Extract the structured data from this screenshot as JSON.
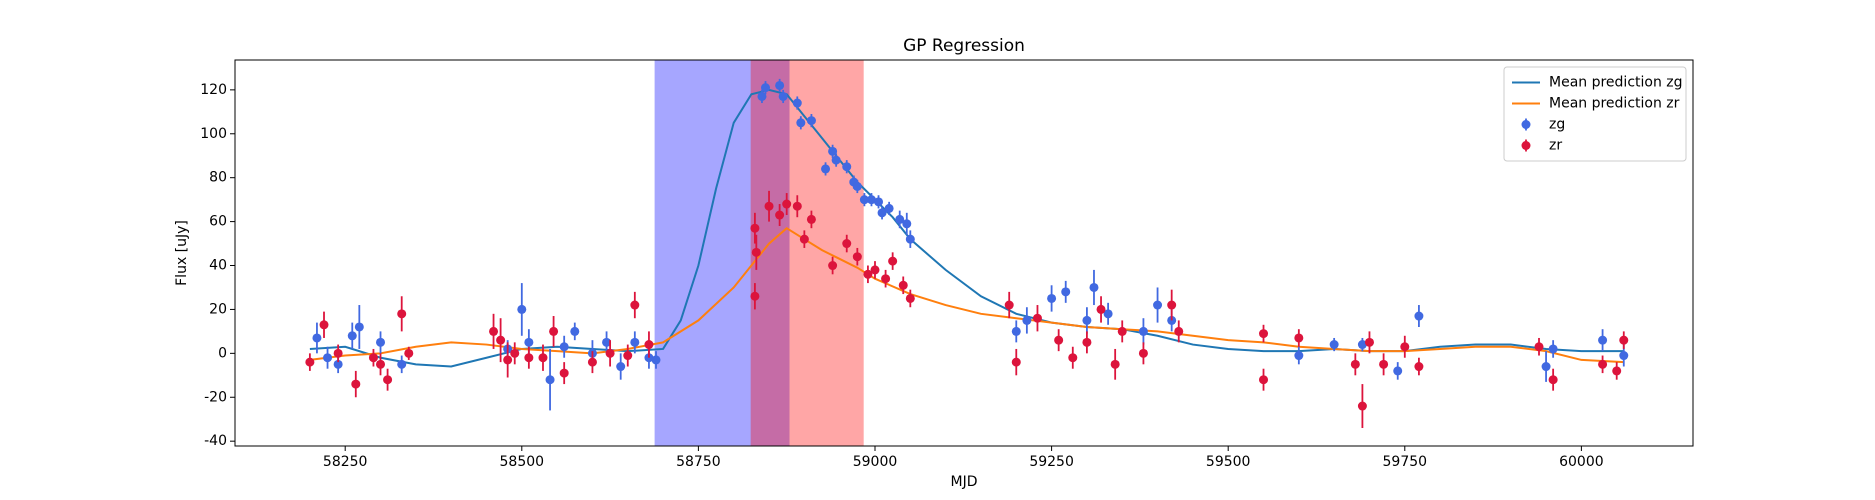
{
  "chart_data": {
    "type": "errorbar",
    "title": "GP Regression",
    "x_label": "MJD",
    "y_label": "Flux [uJy]",
    "xlim": [
      58094,
      60158
    ],
    "ylim": [
      -42.2,
      133.6
    ],
    "xticks": [
      58250,
      58500,
      58750,
      59000,
      59250,
      59500,
      59750,
      60000
    ],
    "yticks": [
      -40,
      -20,
      0,
      20,
      40,
      60,
      80,
      100,
      120
    ],
    "grid": false,
    "legend": "upper right",
    "spans": [
      {
        "xmin": 58688,
        "xmax": 58879,
        "color": "#0000ff"
      },
      {
        "xmin": 58824,
        "xmax": 58984,
        "color": "#ff0000"
      }
    ],
    "lines": [
      {
        "name": "Mean prediction zg",
        "color": "#1f77b4",
        "x": [
          58200,
          58250,
          58300,
          58350,
          58400,
          58450,
          58500,
          58550,
          58600,
          58650,
          58700,
          58725,
          58750,
          58775,
          58800,
          58825,
          58850,
          58875,
          58900,
          58925,
          58950,
          58975,
          59000,
          59025,
          59050,
          59100,
          59150,
          59200,
          59250,
          59300,
          59350,
          59400,
          59450,
          59500,
          59550,
          59600,
          59650,
          59700,
          59750,
          59800,
          59850,
          59900,
          59950,
          60000,
          60060
        ],
        "values": [
          2,
          3,
          -2,
          -5,
          -6,
          -2,
          2,
          3,
          2,
          1,
          2,
          15,
          40,
          75,
          105,
          118,
          120,
          118,
          108,
          98,
          88,
          78,
          70,
          62,
          52,
          38,
          26,
          18,
          14,
          12,
          11,
          8,
          4,
          2,
          1,
          1,
          2,
          1,
          1,
          3,
          4,
          4,
          2,
          1,
          1
        ]
      },
      {
        "name": "Mean prediction zr",
        "color": "#ff7f0e",
        "x": [
          58200,
          58250,
          58300,
          58350,
          58400,
          58450,
          58500,
          58550,
          58600,
          58650,
          58700,
          58750,
          58800,
          58825,
          58850,
          58875,
          58900,
          58925,
          58950,
          58975,
          59000,
          59050,
          59100,
          59150,
          59200,
          59250,
          59300,
          59350,
          59400,
          59450,
          59500,
          59550,
          59600,
          59650,
          59700,
          59750,
          59800,
          59850,
          59900,
          59950,
          60000,
          60060
        ],
        "values": [
          -3,
          -1,
          0,
          3,
          5,
          4,
          2,
          1,
          0,
          2,
          5,
          15,
          30,
          40,
          50,
          57,
          52,
          47,
          43,
          39,
          34,
          27,
          22,
          18,
          16,
          14,
          12,
          11,
          10,
          8,
          6,
          5,
          3,
          2,
          1,
          1,
          2,
          3,
          3,
          1,
          -3,
          -4
        ]
      }
    ],
    "series": [
      {
        "name": "zg",
        "color": "#4169e1",
        "x": [
          58210,
          58225,
          58240,
          58260,
          58270,
          58300,
          58330,
          58480,
          58500,
          58510,
          58540,
          58560,
          58575,
          58600,
          58620,
          58640,
          58660,
          58680,
          58690,
          58840,
          58845,
          58865,
          58870,
          58890,
          58895,
          58910,
          58930,
          58940,
          58945,
          58960,
          58970,
          58975,
          58985,
          58995,
          59005,
          59010,
          59020,
          59035,
          59045,
          59050,
          59200,
          59215,
          59250,
          59270,
          59300,
          59310,
          59330,
          59380,
          59400,
          59420,
          59600,
          59650,
          59690,
          59740,
          59770,
          59950,
          59960,
          60030,
          60060
        ],
        "values": [
          7,
          -2,
          -5,
          8,
          12,
          5,
          -5,
          2,
          20,
          5,
          -12,
          3,
          10,
          0,
          5,
          -6,
          5,
          -2,
          -3,
          117,
          121,
          122,
          117,
          114,
          105,
          106,
          84,
          92,
          88,
          85,
          78,
          76,
          70,
          70,
          69,
          64,
          66,
          61,
          59,
          52,
          10,
          15,
          25,
          28,
          15,
          30,
          18,
          10,
          22,
          15,
          -1,
          4,
          4,
          -8,
          17,
          -6,
          2,
          6,
          -1
        ],
        "error": [
          7,
          5,
          4,
          6,
          10,
          5,
          4,
          4,
          12,
          6,
          14,
          5,
          4,
          6,
          5,
          6,
          5,
          5,
          4,
          3,
          3,
          3,
          3,
          3,
          3,
          3,
          3,
          3,
          3,
          3,
          3,
          3,
          3,
          3,
          3,
          3,
          3,
          4,
          5,
          4,
          5,
          6,
          6,
          5,
          6,
          8,
          5,
          6,
          8,
          5,
          4,
          3,
          3,
          4,
          5,
          7,
          4,
          5,
          5
        ]
      },
      {
        "name": "zr",
        "color": "#dc143c",
        "x": [
          58200,
          58220,
          58240,
          58265,
          58290,
          58300,
          58310,
          58330,
          58340,
          58460,
          58470,
          58480,
          58490,
          58510,
          58530,
          58545,
          58560,
          58600,
          58625,
          58650,
          58660,
          58680,
          58830,
          58832,
          58830,
          58850,
          58865,
          58875,
          58890,
          58900,
          58910,
          58940,
          58960,
          58975,
          58990,
          59000,
          59015,
          59025,
          59040,
          59050,
          59190,
          59200,
          59230,
          59260,
          59280,
          59300,
          59320,
          59340,
          59350,
          59380,
          59420,
          59430,
          59550,
          59550,
          59600,
          59680,
          59690,
          59700,
          59720,
          59750,
          59770,
          59940,
          59960,
          60030,
          60050,
          60060
        ],
        "values": [
          -4,
          13,
          0,
          -14,
          -2,
          -5,
          -12,
          18,
          0,
          10,
          6,
          -3,
          0,
          -2,
          -2,
          10,
          -9,
          -4,
          0,
          -1,
          22,
          4,
          57,
          46,
          26,
          67,
          63,
          68,
          67,
          52,
          61,
          40,
          50,
          44,
          36,
          38,
          34,
          42,
          31,
          25,
          22,
          -4,
          16,
          6,
          -2,
          5,
          20,
          -5,
          10,
          0,
          22,
          10,
          -12,
          9,
          7,
          -5,
          -24,
          5,
          -5,
          3,
          -6,
          3,
          -12,
          -5,
          -8,
          6
        ],
        "error": [
          4,
          6,
          4,
          6,
          4,
          5,
          5,
          8,
          3,
          8,
          10,
          8,
          5,
          5,
          6,
          7,
          5,
          5,
          6,
          5,
          6,
          6,
          7,
          8,
          6,
          7,
          5,
          5,
          5,
          4,
          4,
          4,
          4,
          4,
          4,
          4,
          4,
          4,
          4,
          4,
          6,
          6,
          6,
          5,
          5,
          5,
          6,
          7,
          5,
          5,
          7,
          5,
          5,
          4,
          4,
          5,
          10,
          5,
          5,
          5,
          4,
          4,
          5,
          4,
          4,
          4
        ]
      }
    ]
  }
}
